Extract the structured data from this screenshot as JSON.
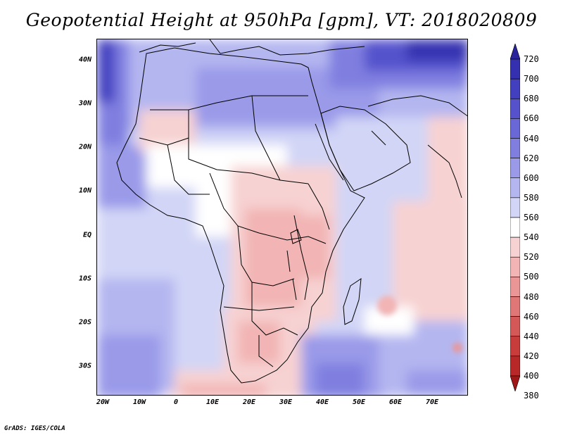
{
  "title": "Geopotential Height at 950hPa [gpm], VT: 2018020809",
  "credit": "GrADS: IGES/COLA",
  "axes": {
    "y_labels": [
      "40N",
      "30N",
      "20N",
      "10N",
      "EQ",
      "10S",
      "20S",
      "30S"
    ],
    "x_labels": [
      "20W",
      "10W",
      "0",
      "10E",
      "20E",
      "30E",
      "40E",
      "50E",
      "60E",
      "70E"
    ]
  },
  "colorbar": {
    "labels": [
      "720",
      "700",
      "680",
      "660",
      "640",
      "620",
      "600",
      "580",
      "560",
      "540",
      "520",
      "500",
      "480",
      "460",
      "440",
      "420",
      "400",
      "380"
    ],
    "colors": [
      "#2b239b",
      "#3530b0",
      "#4340c0",
      "#5552cc",
      "#6a68d6",
      "#807fe0",
      "#9a9ae9",
      "#b4b6f0",
      "#d2d5f6",
      "#ffffff",
      "#f7d2d2",
      "#f2b4b4",
      "#ea9696",
      "#e07777",
      "#d55858",
      "#c83c3c",
      "#b82828",
      "#a11616"
    ]
  },
  "map": {
    "region": "Africa and surroundings",
    "lon_range": [
      -25,
      80
    ],
    "lat_range": [
      -37,
      45
    ]
  }
}
